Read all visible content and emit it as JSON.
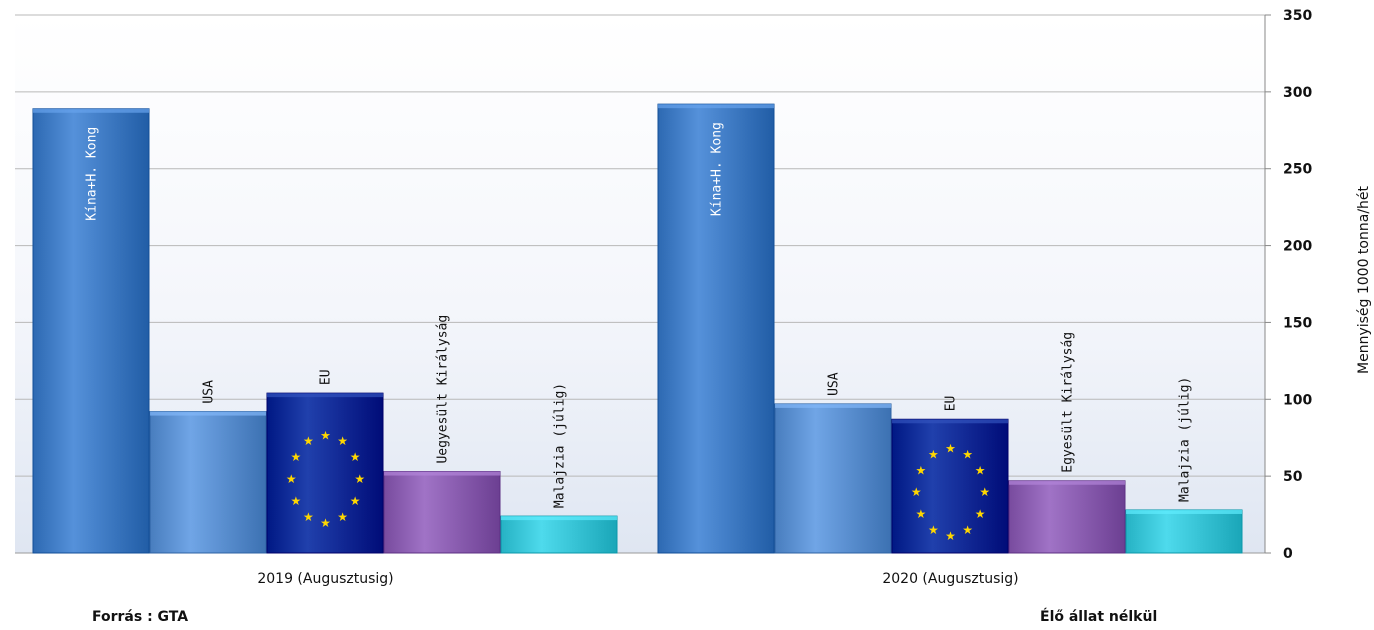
{
  "footer": {
    "source": "Forrás : GTA",
    "note": "Élő állat nélkül"
  },
  "colors": {
    "china": "#3f7bc4",
    "usa": "#5a8fd0",
    "eu": "#0a2a96",
    "uk": "#8a5db0",
    "malaysia": "#38c4d6",
    "eu_star": "#ffd700",
    "grid": "#b8b8b8"
  },
  "chart_data": {
    "type": "bar",
    "categories": [
      "2019 (Augusztusig)",
      "2020 (Augusztusig)"
    ],
    "ylabel": "Mennyiség 1000 tonna/hét",
    "ylim": [
      0,
      350
    ],
    "yticks": [
      0,
      50,
      100,
      150,
      200,
      250,
      300,
      350
    ],
    "y_axis_position": "right",
    "grid": true,
    "legend": "none",
    "bar_labels_rotated": true,
    "series": [
      {
        "key": "china",
        "labels": [
          "Kína+H. Kong",
          "Kína+H. Kong"
        ],
        "values": [
          289,
          292
        ]
      },
      {
        "key": "usa",
        "labels": [
          "USA",
          "USA"
        ],
        "values": [
          92,
          97
        ]
      },
      {
        "key": "eu",
        "labels": [
          "EU",
          "EU"
        ],
        "values": [
          104,
          87
        ]
      },
      {
        "key": "uk",
        "labels": [
          "Uegyesült Királyság",
          "Egyesült Királyság"
        ],
        "values": [
          53,
          47
        ]
      },
      {
        "key": "malaysia",
        "labels": [
          "Malajzia (júlig)",
          "Malajzia (júlig)"
        ],
        "values": [
          24,
          28
        ]
      }
    ]
  }
}
